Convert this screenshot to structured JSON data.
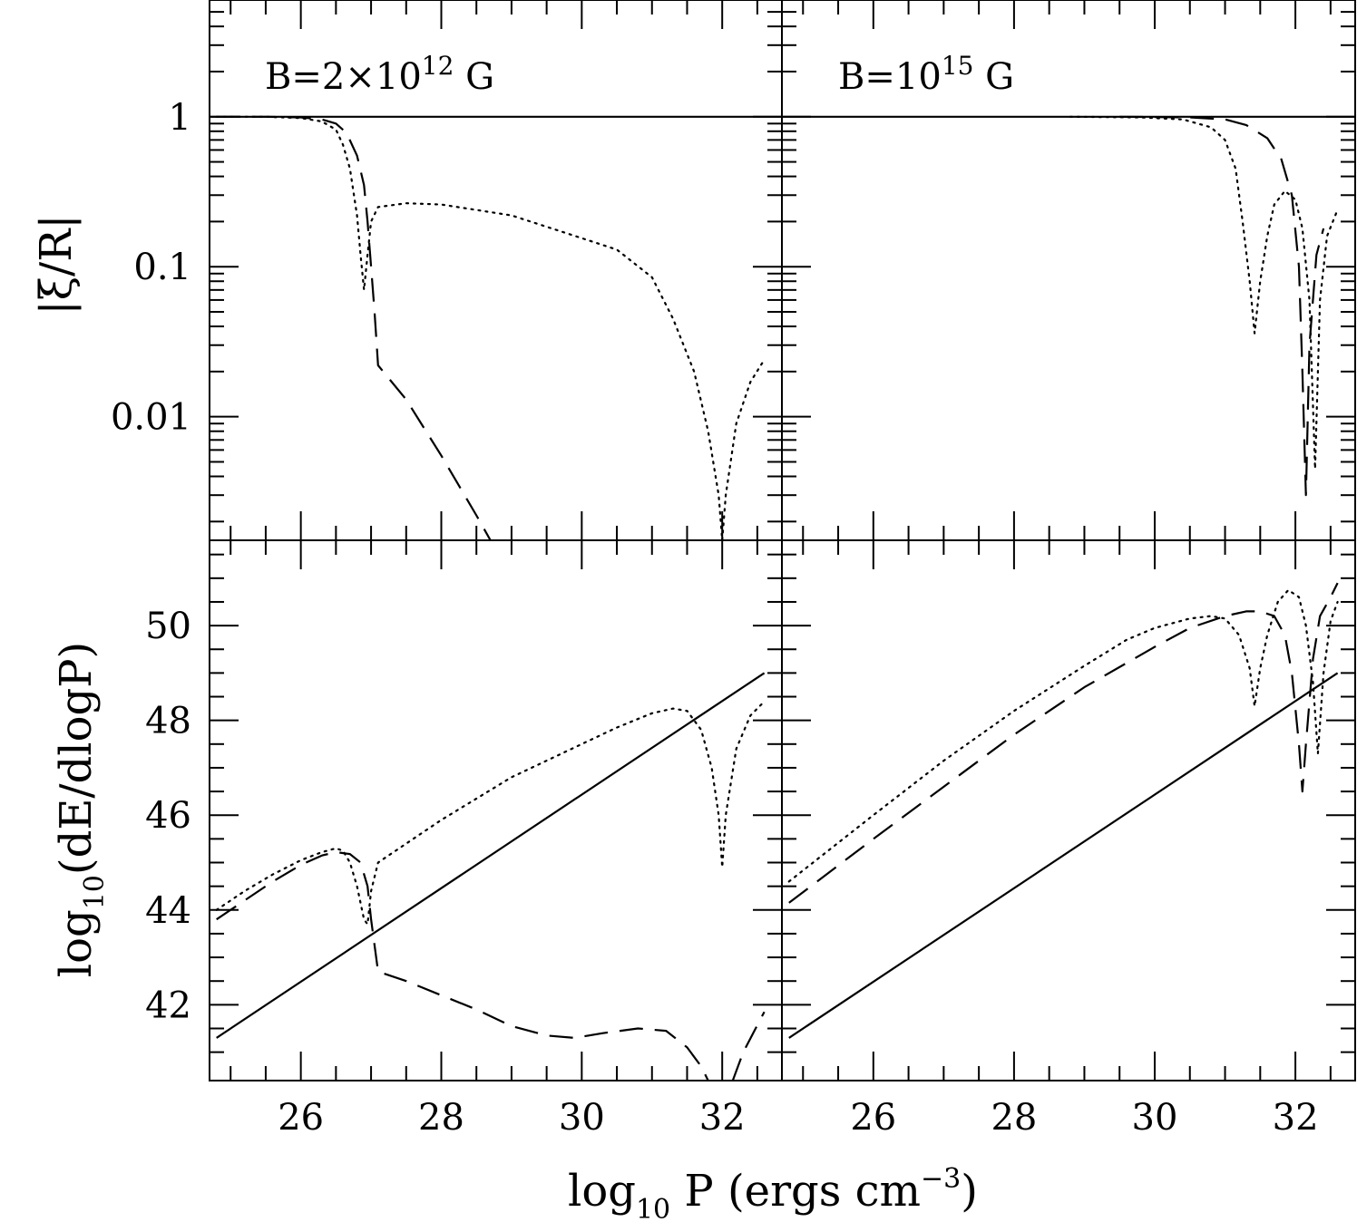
{
  "chart_data": {
    "type": "line",
    "x_axis": {
      "label_main": "log",
      "label_sub": "10",
      "label_rest": " P (ergs cm",
      "label_sup": "−3",
      "label_end": ")",
      "range": [
        24.7,
        32.85
      ],
      "ticks": [
        "26",
        "28",
        "30",
        "32"
      ]
    },
    "panels": [
      {
        "id": "top-left",
        "annotation_main": "B=2×10",
        "annotation_sup": "12",
        "annotation_end": " G",
        "yscale": "log",
        "ylim": [
          0.0015,
          6.0
        ],
        "series": [
          {
            "style": "solid",
            "points": [
              [
                24.7,
                1.0
              ],
              [
                32.85,
                1.0
              ]
            ]
          },
          {
            "style": "dashed",
            "points": [
              [
                24.8,
                1.0
              ],
              [
                25.5,
                1.0
              ],
              [
                26.0,
                0.99
              ],
              [
                26.3,
                0.96
              ],
              [
                26.5,
                0.9
              ],
              [
                26.65,
                0.78
              ],
              [
                26.8,
                0.55
              ],
              [
                26.9,
                0.35
              ],
              [
                26.95,
                0.2
              ],
              [
                27.0,
                0.1
              ],
              [
                27.05,
                0.05
              ],
              [
                27.1,
                0.022
              ],
              [
                27.5,
                0.013
              ],
              [
                28.0,
                0.0055
              ],
              [
                28.5,
                0.0022
              ],
              [
                28.7,
                0.0015
              ]
            ]
          },
          {
            "style": "dotted",
            "points": [
              [
                24.8,
                1.0
              ],
              [
                25.5,
                1.0
              ],
              [
                26.0,
                0.98
              ],
              [
                26.3,
                0.93
              ],
              [
                26.5,
                0.82
              ],
              [
                26.6,
                0.65
              ],
              [
                26.7,
                0.45
              ],
              [
                26.8,
                0.22
              ],
              [
                26.85,
                0.12
              ],
              [
                26.9,
                0.07
              ],
              [
                26.95,
                0.12
              ],
              [
                27.0,
                0.2
              ],
              [
                27.1,
                0.25
              ],
              [
                27.5,
                0.265
              ],
              [
                28.0,
                0.26
              ],
              [
                29.0,
                0.22
              ],
              [
                30.0,
                0.155
              ],
              [
                30.5,
                0.13
              ],
              [
                31.0,
                0.085
              ],
              [
                31.3,
                0.045
              ],
              [
                31.6,
                0.02
              ],
              [
                31.8,
                0.008
              ],
              [
                31.95,
                0.003
              ],
              [
                32.0,
                0.0015
              ],
              [
                32.05,
                0.003
              ],
              [
                32.2,
                0.009
              ],
              [
                32.4,
                0.017
              ],
              [
                32.6,
                0.024
              ]
            ]
          }
        ]
      },
      {
        "id": "top-right",
        "annotation_main": "B=10",
        "annotation_sup": "15",
        "annotation_end": " G",
        "yscale": "log",
        "ylim": [
          0.0015,
          6.0
        ],
        "series": [
          {
            "style": "solid",
            "points": [
              [
                24.7,
                1.0
              ],
              [
                32.85,
                1.0
              ]
            ]
          },
          {
            "style": "dashed",
            "points": [
              [
                29.5,
                1.0
              ],
              [
                30.5,
                0.99
              ],
              [
                31.0,
                0.96
              ],
              [
                31.3,
                0.88
              ],
              [
                31.6,
                0.72
              ],
              [
                31.8,
                0.52
              ],
              [
                31.95,
                0.3
              ],
              [
                32.05,
                0.1
              ],
              [
                32.1,
                0.02
              ],
              [
                32.15,
                0.003
              ],
              [
                32.2,
                0.03
              ],
              [
                32.3,
                0.12
              ],
              [
                32.4,
                0.18
              ]
            ]
          },
          {
            "style": "dotted",
            "points": [
              [
                28.8,
                1.0
              ],
              [
                29.8,
                0.99
              ],
              [
                30.4,
                0.96
              ],
              [
                30.8,
                0.85
              ],
              [
                31.0,
                0.7
              ],
              [
                31.15,
                0.45
              ],
              [
                31.25,
                0.2
              ],
              [
                31.35,
                0.08
              ],
              [
                31.42,
                0.036
              ],
              [
                31.5,
                0.08
              ],
              [
                31.6,
                0.16
              ],
              [
                31.7,
                0.26
              ],
              [
                31.85,
                0.32
              ],
              [
                32.0,
                0.28
              ],
              [
                32.1,
                0.18
              ],
              [
                32.2,
                0.06
              ],
              [
                32.28,
                0.0045
              ],
              [
                32.35,
                0.06
              ],
              [
                32.45,
                0.16
              ],
              [
                32.6,
                0.24
              ]
            ]
          }
        ]
      },
      {
        "id": "bottom-left",
        "ylabel_main": "log",
        "ylabel_sub": "10",
        "ylabel_rest": "(dE/dlogP)",
        "yscale": "linear",
        "ylim": [
          40.4,
          51.8
        ],
        "yticks": [
          "42",
          "44",
          "46",
          "48",
          "50"
        ],
        "series": [
          {
            "style": "solid",
            "points": [
              [
                24.8,
                41.3
              ],
              [
                32.6,
                49.0
              ]
            ]
          },
          {
            "style": "dashed",
            "points": [
              [
                24.8,
                43.8
              ],
              [
                25.2,
                44.2
              ],
              [
                25.6,
                44.6
              ],
              [
                26.0,
                44.95
              ],
              [
                26.3,
                45.15
              ],
              [
                26.5,
                45.22
              ],
              [
                26.7,
                45.18
              ],
              [
                26.85,
                45.0
              ],
              [
                26.95,
                44.5
              ],
              [
                27.0,
                43.8
              ],
              [
                27.1,
                42.7
              ],
              [
                27.5,
                42.5
              ],
              [
                28.0,
                42.2
              ],
              [
                28.5,
                41.9
              ],
              [
                29.0,
                41.55
              ],
              [
                29.5,
                41.35
              ],
              [
                29.9,
                41.3
              ],
              [
                30.3,
                41.4
              ],
              [
                30.8,
                41.5
              ],
              [
                31.2,
                41.45
              ],
              [
                31.5,
                41.1
              ],
              [
                31.7,
                40.7
              ],
              [
                31.8,
                40.4
              ]
            ]
          },
          {
            "style": "dashed",
            "points": [
              [
                32.15,
                40.4
              ],
              [
                32.3,
                41.0
              ],
              [
                32.6,
                41.85
              ]
            ]
          },
          {
            "style": "dotted",
            "points": [
              [
                24.8,
                44.0
              ],
              [
                25.2,
                44.4
              ],
              [
                25.6,
                44.75
              ],
              [
                26.0,
                45.05
              ],
              [
                26.3,
                45.22
              ],
              [
                26.5,
                45.3
              ],
              [
                26.6,
                45.25
              ],
              [
                26.7,
                45.0
              ],
              [
                26.8,
                44.5
              ],
              [
                26.9,
                43.8
              ],
              [
                26.95,
                43.7
              ],
              [
                27.0,
                44.4
              ],
              [
                27.1,
                45.0
              ],
              [
                27.5,
                45.4
              ],
              [
                28.0,
                45.9
              ],
              [
                29.0,
                46.8
              ],
              [
                30.0,
                47.5
              ],
              [
                30.5,
                47.85
              ],
              [
                31.0,
                48.15
              ],
              [
                31.3,
                48.25
              ],
              [
                31.5,
                48.2
              ],
              [
                31.7,
                47.8
              ],
              [
                31.85,
                47.0
              ],
              [
                31.95,
                46.0
              ],
              [
                32.0,
                44.9
              ],
              [
                32.05,
                46.0
              ],
              [
                32.2,
                47.4
              ],
              [
                32.4,
                48.1
              ],
              [
                32.6,
                48.4
              ]
            ]
          }
        ]
      },
      {
        "id": "bottom-right",
        "yscale": "linear",
        "ylim": [
          40.4,
          51.8
        ],
        "series": [
          {
            "style": "solid",
            "points": [
              [
                24.8,
                41.3
              ],
              [
                32.6,
                49.0
              ]
            ]
          },
          {
            "style": "dashed",
            "points": [
              [
                24.8,
                44.15
              ],
              [
                26.0,
                45.5
              ],
              [
                27.0,
                46.6
              ],
              [
                28.0,
                47.7
              ],
              [
                29.0,
                48.7
              ],
              [
                30.0,
                49.55
              ],
              [
                30.5,
                49.95
              ],
              [
                31.0,
                50.2
              ],
              [
                31.3,
                50.3
              ],
              [
                31.5,
                50.3
              ],
              [
                31.7,
                50.2
              ],
              [
                31.85,
                49.8
              ],
              [
                31.95,
                49.0
              ],
              [
                32.05,
                47.5
              ],
              [
                32.1,
                46.5
              ],
              [
                32.15,
                47.5
              ],
              [
                32.25,
                49.3
              ],
              [
                32.35,
                50.2
              ],
              [
                32.5,
                50.6
              ],
              [
                32.6,
                50.9
              ]
            ]
          },
          {
            "style": "dotted",
            "points": [
              [
                24.8,
                44.6
              ],
              [
                26.0,
                46.0
              ],
              [
                27.0,
                47.15
              ],
              [
                28.0,
                48.2
              ],
              [
                29.0,
                49.15
              ],
              [
                29.6,
                49.7
              ],
              [
                30.0,
                49.95
              ],
              [
                30.5,
                50.15
              ],
              [
                30.8,
                50.2
              ],
              [
                31.0,
                50.15
              ],
              [
                31.2,
                49.8
              ],
              [
                31.35,
                49.1
              ],
              [
                31.42,
                48.3
              ],
              [
                31.5,
                49.1
              ],
              [
                31.6,
                49.8
              ],
              [
                31.75,
                50.5
              ],
              [
                31.9,
                50.75
              ],
              [
                32.05,
                50.6
              ],
              [
                32.15,
                50.0
              ],
              [
                32.25,
                48.8
              ],
              [
                32.32,
                47.3
              ],
              [
                32.4,
                49.0
              ],
              [
                32.5,
                50.1
              ],
              [
                32.6,
                50.5
              ]
            ]
          }
        ]
      }
    ]
  }
}
